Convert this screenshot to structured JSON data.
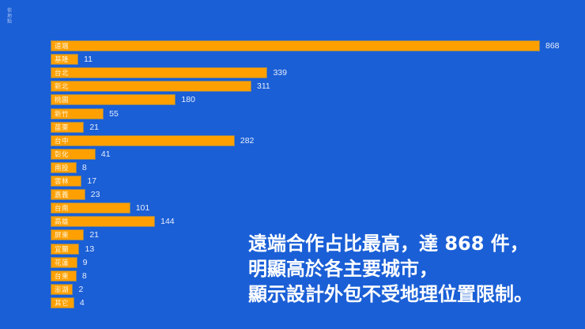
{
  "corner_label": "依地點",
  "headline": {
    "lines": [
      "遠端合作占比最高，達 868 件，",
      "明顯高於各主要城市，",
      "顯示設計外包不受地理位置限制。"
    ]
  },
  "colors": {
    "background": "#1a5fd6",
    "bar": "#ffa000",
    "bar_border": "#8c8466",
    "bar_label": "#fff4dc",
    "value_label": "#e8eefc",
    "headline": "#ffffff"
  },
  "chart_data": {
    "type": "bar",
    "orientation": "horizontal",
    "title": "",
    "xlabel": "",
    "ylabel": "",
    "grid": false,
    "legend": "none",
    "categories": [
      "遠端",
      "基隆",
      "台北",
      "新北",
      "桃園",
      "新竹",
      "苗栗",
      "台中",
      "彰化",
      "南投",
      "雲林",
      "嘉義",
      "台南",
      "高雄",
      "屏東",
      "宜蘭",
      "花蓮",
      "台東",
      "澎湖",
      "其它"
    ],
    "values": [
      868,
      11,
      339,
      311,
      180,
      55,
      21,
      282,
      41,
      8,
      17,
      23,
      101,
      144,
      21,
      13,
      9,
      8,
      2,
      4
    ],
    "annotation": "遠端合作占比最高，達 868 件，明顯高於各主要城市，顯示設計外包不受地理位置限制。"
  }
}
